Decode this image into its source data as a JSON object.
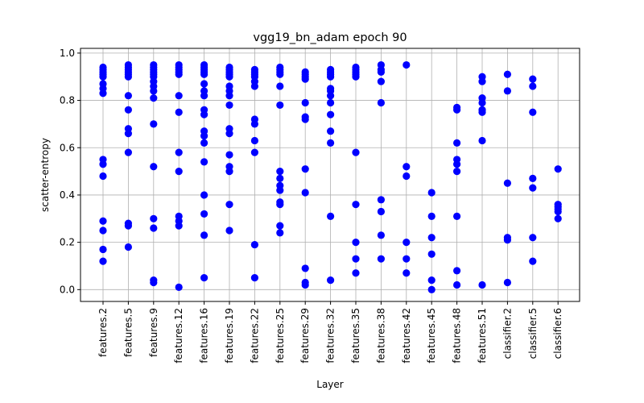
{
  "chart_data": {
    "type": "scatter",
    "title": "vgg19_bn_adam epoch 90",
    "xlabel": "Layer",
    "ylabel": "scatter-entropy",
    "ylim": [
      -0.05,
      1.02
    ],
    "yticks": [
      "0.0",
      "0.2",
      "0.4",
      "0.6",
      "0.8",
      "1.0"
    ],
    "grid": true,
    "marker_color": "#0000ff",
    "categories": [
      "features.2",
      "features.5",
      "features.9",
      "features.12",
      "features.16",
      "features.19",
      "features.22",
      "features.25",
      "features.29",
      "features.32",
      "features.35",
      "features.38",
      "features.42",
      "features.45",
      "features.48",
      "features.51",
      "classifier.2",
      "classifier.5",
      "classifier.6"
    ],
    "series": [
      {
        "values": [
          [
            0.94,
            0.93,
            0.92,
            0.91,
            0.9,
            0.87,
            0.85,
            0.83,
            0.55,
            0.53,
            0.48,
            0.29,
            0.25,
            0.17,
            0.12
          ],
          [
            0.95,
            0.94,
            0.93,
            0.92,
            0.91,
            0.9,
            0.82,
            0.76,
            0.68,
            0.66,
            0.58,
            0.28,
            0.27,
            0.18
          ],
          [
            0.95,
            0.94,
            0.93,
            0.92,
            0.91,
            0.9,
            0.88,
            0.86,
            0.84,
            0.81,
            0.7,
            0.52,
            0.3,
            0.26,
            0.04,
            0.03
          ],
          [
            0.95,
            0.94,
            0.93,
            0.92,
            0.91,
            0.82,
            0.75,
            0.58,
            0.5,
            0.31,
            0.29,
            0.27,
            0.01
          ],
          [
            0.95,
            0.94,
            0.93,
            0.92,
            0.91,
            0.87,
            0.84,
            0.82,
            0.76,
            0.74,
            0.67,
            0.65,
            0.62,
            0.54,
            0.4,
            0.32,
            0.23,
            0.05
          ],
          [
            0.94,
            0.93,
            0.92,
            0.91,
            0.9,
            0.86,
            0.84,
            0.82,
            0.78,
            0.68,
            0.66,
            0.57,
            0.52,
            0.5,
            0.36,
            0.25
          ],
          [
            0.93,
            0.92,
            0.91,
            0.9,
            0.88,
            0.86,
            0.72,
            0.7,
            0.63,
            0.58,
            0.19,
            0.05
          ],
          [
            0.94,
            0.93,
            0.92,
            0.91,
            0.86,
            0.78,
            0.5,
            0.47,
            0.44,
            0.42,
            0.37,
            0.36,
            0.27,
            0.24
          ],
          [
            0.92,
            0.91,
            0.9,
            0.89,
            0.79,
            0.73,
            0.72,
            0.51,
            0.41,
            0.09,
            0.03,
            0.02
          ],
          [
            0.93,
            0.92,
            0.91,
            0.9,
            0.85,
            0.84,
            0.82,
            0.79,
            0.74,
            0.67,
            0.62,
            0.31,
            0.04
          ],
          [
            0.94,
            0.93,
            0.92,
            0.91,
            0.9,
            0.58,
            0.36,
            0.2,
            0.13,
            0.07
          ],
          [
            0.95,
            0.93,
            0.92,
            0.88,
            0.79,
            0.38,
            0.33,
            0.23,
            0.13
          ],
          [
            0.95,
            0.52,
            0.48,
            0.2,
            0.13,
            0.07
          ],
          [
            0.41,
            0.31,
            0.22,
            0.15,
            0.04,
            0.0
          ],
          [
            0.77,
            0.76,
            0.62,
            0.55,
            0.53,
            0.5,
            0.31,
            0.08,
            0.02
          ],
          [
            0.9,
            0.88,
            0.81,
            0.79,
            0.76,
            0.75,
            0.63,
            0.02
          ],
          [
            0.91,
            0.84,
            0.45,
            0.22,
            0.21,
            0.03
          ],
          [
            0.89,
            0.86,
            0.75,
            0.47,
            0.43,
            0.22,
            0.12
          ],
          [
            0.51,
            0.36,
            0.35,
            0.34,
            0.33,
            0.3
          ]
        ]
      }
    ]
  }
}
